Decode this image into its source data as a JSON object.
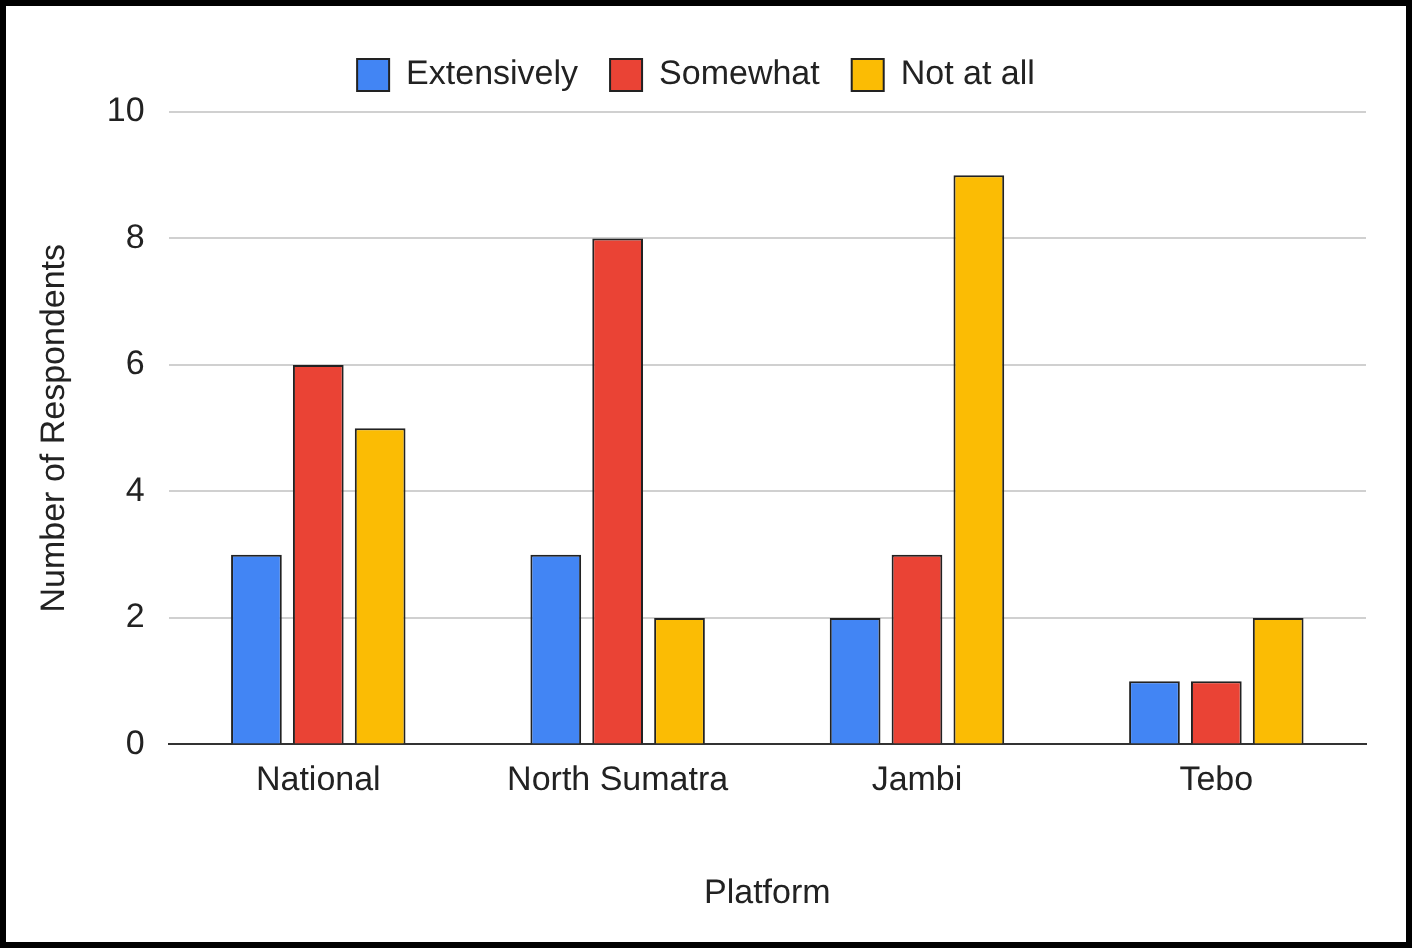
{
  "chart_data": {
    "type": "bar",
    "xlabel": "Platform",
    "ylabel": "Number of Respondents",
    "categories": [
      "National",
      "North Sumatra",
      "Jambi",
      "Tebo"
    ],
    "series": [
      {
        "name": "Extensively",
        "color": "#4285f4",
        "values": [
          3,
          3,
          2,
          1
        ]
      },
      {
        "name": "Somewhat",
        "color": "#ea4335",
        "values": [
          6,
          8,
          3,
          1
        ]
      },
      {
        "name": "Not at all",
        "color": "#fbbc04",
        "values": [
          5,
          2,
          9,
          2
        ]
      }
    ],
    "ylim": [
      0,
      10
    ],
    "yticks": [
      0,
      2,
      4,
      6,
      8,
      10
    ],
    "grid": "y",
    "legend": "top"
  }
}
